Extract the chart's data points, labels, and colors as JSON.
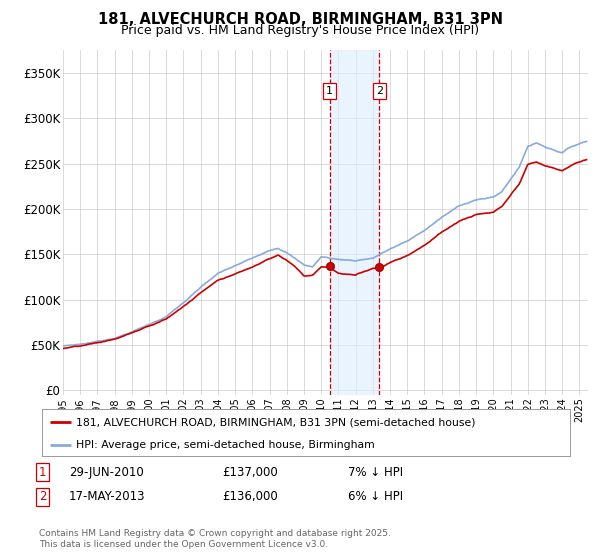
{
  "title": "181, ALVECHURCH ROAD, BIRMINGHAM, B31 3PN",
  "subtitle": "Price paid vs. HM Land Registry's House Price Index (HPI)",
  "yticks": [
    0,
    50000,
    100000,
    150000,
    200000,
    250000,
    300000,
    350000
  ],
  "ytick_labels": [
    "£0",
    "£50K",
    "£100K",
    "£150K",
    "£200K",
    "£250K",
    "£300K",
    "£350K"
  ],
  "xlim_start": 1995.0,
  "xlim_end": 2025.5,
  "ylim_min": -5000,
  "ylim_max": 375000,
  "house_color": "#cc0000",
  "hpi_color": "#88aadd",
  "purchase1_date": 2010.49,
  "purchase1_price": 137000,
  "purchase2_date": 2013.37,
  "purchase2_price": 136000,
  "legend_house": "181, ALVECHURCH ROAD, BIRMINGHAM, B31 3PN (semi-detached house)",
  "legend_hpi": "HPI: Average price, semi-detached house, Birmingham",
  "annotation1_date": "29-JUN-2010",
  "annotation1_price": "£137,000",
  "annotation1_pct": "7% ↓ HPI",
  "annotation2_date": "17-MAY-2013",
  "annotation2_price": "£136,000",
  "annotation2_pct": "6% ↓ HPI",
  "footer": "Contains HM Land Registry data © Crown copyright and database right 2025.\nThis data is licensed under the Open Government Licence v3.0.",
  "background_color": "#ffffff",
  "grid_color": "#cccccc",
  "shaded_region_color": "#ddeeff",
  "shaded_alpha": 0.6
}
